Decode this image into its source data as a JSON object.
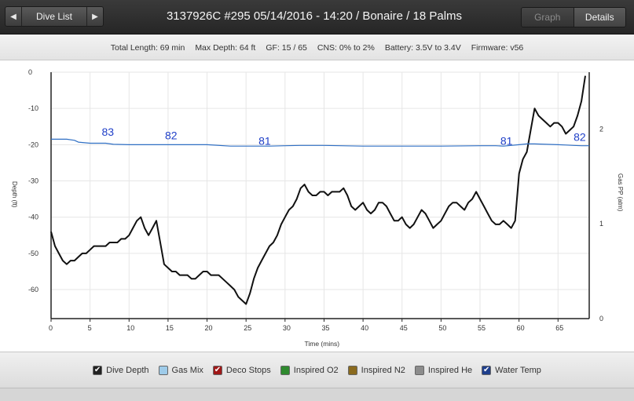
{
  "toolbar": {
    "prev_icon": "chevron-left-icon",
    "next_icon": "chevron-right-icon",
    "prev_glyph": "◀",
    "next_glyph": "▶",
    "dive_list_label": "Dive List",
    "title": "3137926C #295 05/14/2016 - 14:20  / Bonaire  / 18 Palms",
    "graph_label": "Graph",
    "details_label": "Details"
  },
  "info": {
    "total_length": "Total Length: 69 min",
    "max_depth": "Max Depth: 64 ft",
    "gf": "GF: 15 / 65",
    "cns": "CNS: 0% to 2%",
    "battery": "Battery: 3.5V to 3.4V",
    "firmware": "Firmware: v56"
  },
  "legend": [
    {
      "label": "Dive Depth",
      "checked": true,
      "check_glyph": "✔",
      "color": "#222222"
    },
    {
      "label": "Gas Mix",
      "checked": false,
      "color": "#9ecbe9"
    },
    {
      "label": "Deco Stops",
      "checked": true,
      "check_glyph": "✔",
      "color": "#a01818"
    },
    {
      "label": "Inspired O2",
      "checked": false,
      "color": "#2f8a2f"
    },
    {
      "label": "Inspired N2",
      "checked": false,
      "color": "#8a6a1e"
    },
    {
      "label": "Inspired He",
      "checked": false,
      "color": "#8c8c8c"
    },
    {
      "label": "Water Temp",
      "checked": true,
      "check_glyph": "✔",
      "color": "#1f3f8c"
    }
  ],
  "chart_data": {
    "type": "line",
    "xlabel": "Time (mins)",
    "ylabel": "Depth (ft)",
    "y2label": "Gas PP (atm)",
    "xlim": [
      0,
      69
    ],
    "ylim": [
      -68,
      0
    ],
    "y2lim": [
      0,
      2.6
    ],
    "x_ticks": [
      0,
      5,
      10,
      15,
      20,
      25,
      30,
      35,
      40,
      45,
      50,
      55,
      60,
      65
    ],
    "y_ticks": [
      0,
      -10,
      -20,
      -30,
      -40,
      -50,
      -60
    ],
    "y2_ticks": [
      0,
      1,
      2
    ],
    "grid": true,
    "colors": {
      "depth": "#111111",
      "temp": "#2f6fc4",
      "temp_label": "#1f3fc8"
    },
    "series": [
      {
        "id": "depth",
        "x": [
          0,
          0.5,
          1,
          1.5,
          2,
          2.5,
          3,
          3.5,
          4,
          4.5,
          5,
          5.5,
          6,
          6.5,
          7,
          7.5,
          8,
          8.5,
          9,
          9.5,
          10,
          10.5,
          11,
          11.5,
          12,
          12.5,
          13,
          13.5,
          14,
          14.5,
          15,
          15.5,
          16,
          16.5,
          17,
          17.5,
          18,
          18.5,
          19,
          19.5,
          20,
          20.5,
          21,
          21.5,
          22,
          22.5,
          23,
          23.5,
          24,
          24.5,
          25,
          25.5,
          26,
          26.5,
          27,
          27.5,
          28,
          28.5,
          29,
          29.5,
          30,
          30.5,
          31,
          31.5,
          32,
          32.5,
          33,
          33.5,
          34,
          34.5,
          35,
          35.5,
          36,
          36.5,
          37,
          37.5,
          38,
          38.5,
          39,
          39.5,
          40,
          40.5,
          41,
          41.5,
          42,
          42.5,
          43,
          43.5,
          44,
          44.5,
          45,
          45.5,
          46,
          46.5,
          47,
          47.5,
          48,
          48.5,
          49,
          49.5,
          50,
          50.5,
          51,
          51.5,
          52,
          52.5,
          53,
          53.5,
          54,
          54.5,
          55,
          55.5,
          56,
          56.5,
          57,
          57.5,
          58,
          58.5,
          59,
          59.5,
          60,
          60.5,
          61,
          61.5,
          62,
          62.5,
          63,
          63.5,
          64,
          64.5,
          65,
          65.5,
          66,
          66.5,
          67,
          67.5,
          68,
          68.5
        ],
        "y": [
          -44,
          -48,
          -50,
          -52,
          -53,
          -52,
          -52,
          -51,
          -50,
          -50,
          -49,
          -48,
          -48,
          -48,
          -48,
          -47,
          -47,
          -47,
          -46,
          -46,
          -45,
          -43,
          -41,
          -40,
          -43,
          -45,
          -43,
          -41,
          -47,
          -53,
          -54,
          -55,
          -55,
          -56,
          -56,
          -56,
          -57,
          -57,
          -56,
          -55,
          -55,
          -56,
          -56,
          -56,
          -57,
          -58,
          -59,
          -60,
          -62,
          -63,
          -64,
          -61,
          -57,
          -54,
          -52,
          -50,
          -48,
          -47,
          -45,
          -42,
          -40,
          -38,
          -37,
          -35,
          -32,
          -31,
          -33,
          -34,
          -34,
          -33,
          -33,
          -34,
          -33,
          -33,
          -33,
          -32,
          -34,
          -37,
          -38,
          -37,
          -36,
          -38,
          -39,
          -38,
          -36,
          -36,
          -37,
          -39,
          -41,
          -41,
          -40,
          -42,
          -43,
          -42,
          -40,
          -38,
          -39,
          -41,
          -43,
          -42,
          -41,
          -39,
          -37,
          -36,
          -36,
          -37,
          -38,
          -36,
          -35,
          -33,
          -35,
          -37,
          -39,
          -41,
          -42,
          -42,
          -41,
          -42,
          -43,
          -41,
          -28,
          -24,
          -22,
          -16,
          -10,
          -12,
          -13,
          -14,
          -15,
          -14,
          -14,
          -15,
          -17,
          -16,
          -15,
          -12,
          -8,
          -1
        ]
      },
      {
        "id": "water_temp",
        "x": [
          0,
          2,
          3,
          3.5,
          5,
          7,
          8,
          10,
          15,
          20,
          23,
          25,
          28,
          30,
          32,
          35,
          40,
          45,
          50,
          55,
          56,
          57,
          58,
          59,
          60,
          61,
          62,
          65,
          66,
          67,
          68,
          69
        ],
        "y": [
          -18.5,
          -18.5,
          -18.8,
          -19.3,
          -19.6,
          -19.6,
          -19.9,
          -20,
          -20,
          -20,
          -20.4,
          -20.4,
          -20.4,
          -20.3,
          -20.2,
          -20.2,
          -20.4,
          -20.4,
          -20.4,
          -20.3,
          -20.3,
          -20.3,
          -20.4,
          -20.2,
          -20,
          -19.8,
          -19.8,
          -20,
          -20.1,
          -20.2,
          -20.3,
          -20.3
        ]
      }
    ],
    "temp_labels": [
      {
        "x": 6.5,
        "y": -17.5,
        "text": "83"
      },
      {
        "x": 14.6,
        "y": -18.5,
        "text": "82"
      },
      {
        "x": 26.6,
        "y": -20,
        "text": "81"
      },
      {
        "x": 57.6,
        "y": -20,
        "text": "81"
      },
      {
        "x": 67,
        "y": -19,
        "text": "82"
      }
    ]
  }
}
